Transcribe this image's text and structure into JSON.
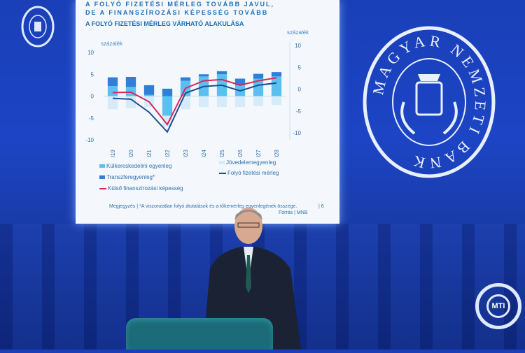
{
  "slide": {
    "title_line1": "A FOLYÓ FIZETÉSI MÉRLEG TOVÁBB JAVUL,",
    "title_line2": "DE A FINANSZÍROZÁSI KÉPESSÉG TOVÁBB",
    "note": "Megjegyzés | *A viszonzatlan folyó átutalások és a tőkemérleg egyenlegének összege.",
    "source": "Forrás | MNB",
    "page": "| 6"
  },
  "chart_data": {
    "type": "bar",
    "title": "A FOLYÓ FIZETÉSI MÉRLEG VÁRHATÓ ALAKULÁSA",
    "ylabel_left": "százalék",
    "ylabel_right": "százalék",
    "ylim_left": [
      -10,
      10
    ],
    "yticks_left": [
      10,
      5,
      0,
      -5,
      -10
    ],
    "ylim_right": [
      -10,
      10
    ],
    "yticks_right": [
      10,
      5,
      0,
      -5,
      -10
    ],
    "categories": [
      "2019",
      "2020",
      "2021",
      "2022",
      "2023",
      "2024",
      "2025",
      "2026",
      "2027",
      "2028"
    ],
    "series": [
      {
        "name": "Külkereskedelmi egyenleg",
        "kind": "bar",
        "color": "#5bc0f0",
        "values": [
          2.3,
          2.1,
          0.3,
          -4.5,
          3.5,
          4.5,
          5,
          2.5,
          4,
          4.5
        ]
      },
      {
        "name": "Transzferegyenleg*",
        "kind": "bar",
        "color": "#2f7fd8",
        "values": [
          2,
          2.3,
          2.2,
          1.7,
          0.8,
          0.5,
          0.7,
          1.5,
          1.1,
          1
        ]
      },
      {
        "name": "Jövedelemegyenleg",
        "kind": "bar",
        "color": "#d6ebfa",
        "values": [
          -3,
          -2.8,
          -2.5,
          -2.5,
          -3,
          -2.5,
          -2.5,
          -2.5,
          -2.3,
          -2
        ]
      },
      {
        "name": "Külső finanszírozási képesség",
        "kind": "line",
        "color": "#d8285a",
        "values": [
          0.8,
          0.9,
          -1.3,
          -6.5,
          1.8,
          3.5,
          3.8,
          2.5,
          3.5,
          4.2
        ]
      },
      {
        "name": "Folyó fizetési mérleg",
        "kind": "line",
        "color": "#1c4f8f",
        "values": [
          -0.5,
          -0.7,
          -3.7,
          -8.2,
          0.7,
          2.2,
          2.5,
          1.2,
          2.5,
          3
        ]
      }
    ],
    "legend": "bottom",
    "grid": false
  },
  "logos": {
    "mnb": "MAGYAR NEMZETI BANK",
    "mti": "MTI"
  }
}
